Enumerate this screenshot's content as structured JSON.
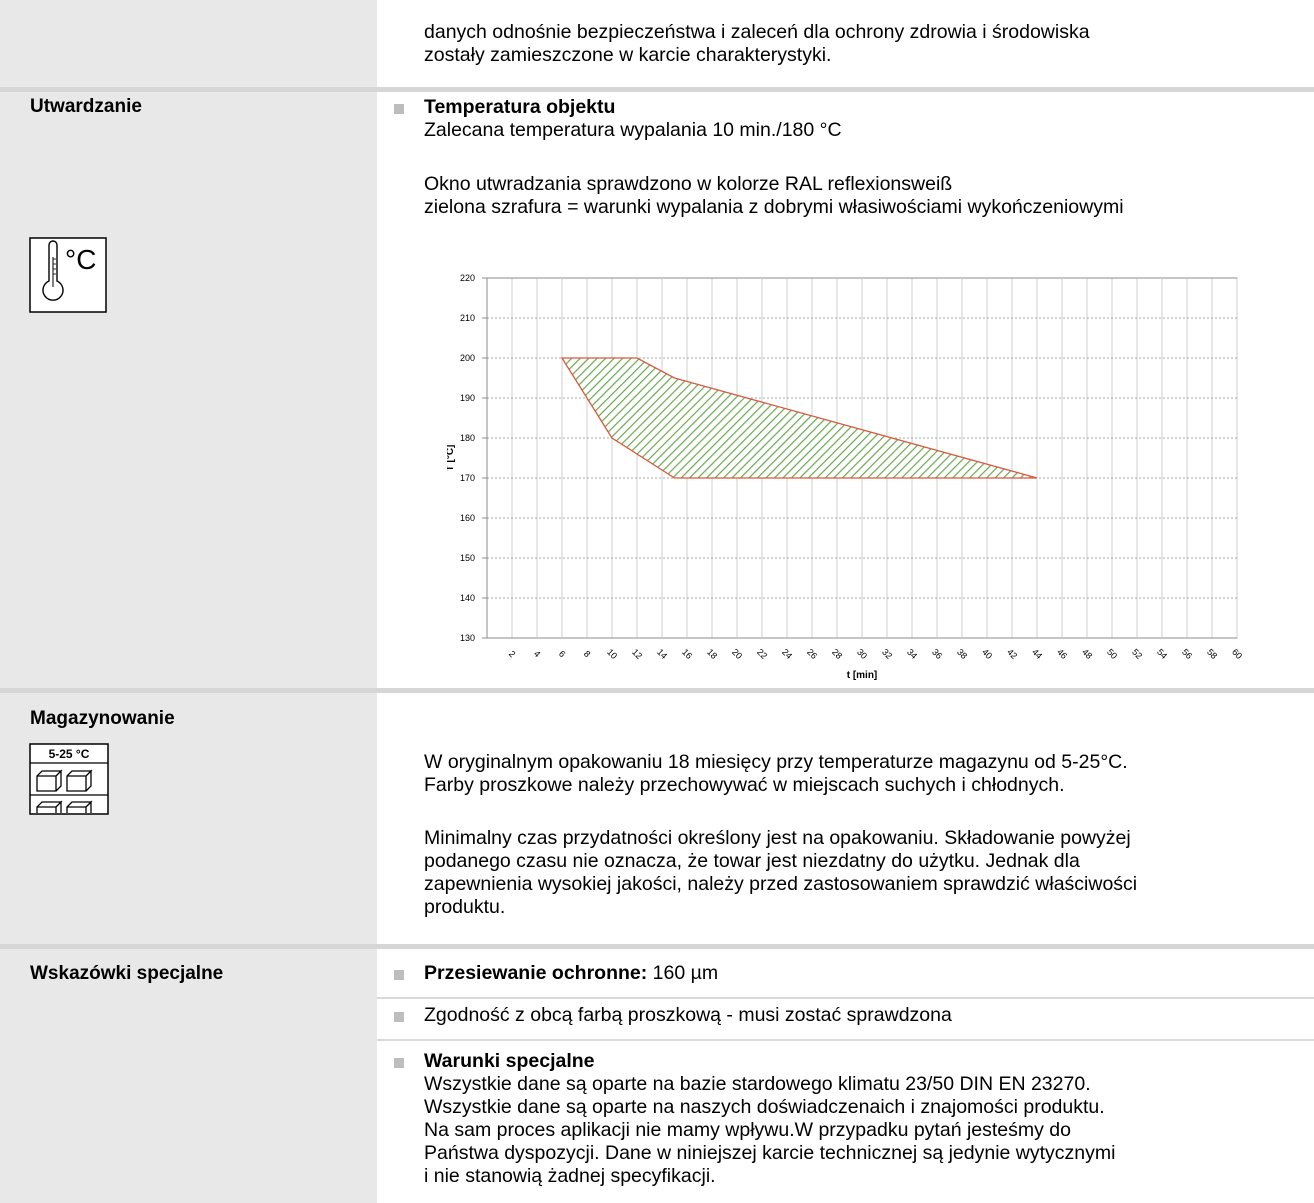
{
  "top": {
    "line1": "danych odnośnie bezpieczeństwa i zaleceń dla ochrony zdrowia i środowiska",
    "line2": "zostały zamieszczone w karcie charakterystyki."
  },
  "curing": {
    "label": "Utwardzanie",
    "heading": "Temperatura objektu",
    "line1": "Zalecana temperatura wypalania 10 min./180 °C",
    "line2": "Okno utwradzania sprawdzono w kolorze RAL reflexionsweiß",
    "line3": "zielona szrafura = warunki wypalania z dobrymi własiwościami wykończeniowymi",
    "icon_text": "°C"
  },
  "chart_data": {
    "type": "area",
    "xlabel": "t [min]",
    "ylabel": "T [°C]",
    "xlim": [
      0,
      60
    ],
    "ylim": [
      130,
      220
    ],
    "x_ticks": [
      2,
      4,
      6,
      8,
      10,
      12,
      14,
      16,
      18,
      20,
      22,
      24,
      26,
      28,
      30,
      32,
      34,
      36,
      38,
      40,
      42,
      44,
      46,
      48,
      50,
      52,
      54,
      56,
      58,
      60
    ],
    "y_ticks": [
      130,
      140,
      150,
      160,
      170,
      180,
      190,
      200,
      210,
      220
    ],
    "grid": true,
    "fill": "green hatch",
    "outline_color": "#d9593f",
    "window_polygon": [
      {
        "x": 6,
        "y": 200
      },
      {
        "x": 12,
        "y": 200
      },
      {
        "x": 15,
        "y": 195
      },
      {
        "x": 44,
        "y": 170
      },
      {
        "x": 15,
        "y": 170
      },
      {
        "x": 10,
        "y": 180
      }
    ]
  },
  "storage": {
    "label": "Magazynowanie",
    "icon_text": "5-25 °C",
    "line1": "W oryginalnym opakowaniu 18 miesięcy przy temperaturze magazynu od 5-25°C.",
    "line2": "Farby proszkowe należy przechowywać  w miejscach suchych i chłodnych.",
    "p2_1": "Minimalny czas przydatności określony jest na opakowaniu. Składowanie powyżej",
    "p2_2": "podanego czasu nie oznacza, że towar jest niezdatny do użytku. Jednak dla",
    "p2_3": "zapewnienia wysokiej jakości, należy przed zastosowaniem sprawdzić właściwości",
    "p2_4": "produktu."
  },
  "special": {
    "label": "Wskazówki specjalne",
    "sieve_label": "Przesiewanie ochronne:",
    "sieve_value": " 160 µm",
    "compat": "Zgodność z obcą farbą proszkową - musi zostać sprawdzona",
    "heading": "Warunki specjalne",
    "l1": "Wszystkie dane są oparte na bazie stardowego klimatu 23/50 DIN EN 23270.",
    "l2": "Wszystkie dane są oparte na naszych doświadczenaich i znajomości produktu.",
    "l3": "Na sam proces aplikacji nie mamy wpływu.W przypadku pytań jesteśmy do",
    "l4": "Państwa dyspozycji. Dane w niniejszej karcie technicznej są jedynie wytycznymi",
    "l5": "i nie stanowią żadnej specyfikacji."
  }
}
